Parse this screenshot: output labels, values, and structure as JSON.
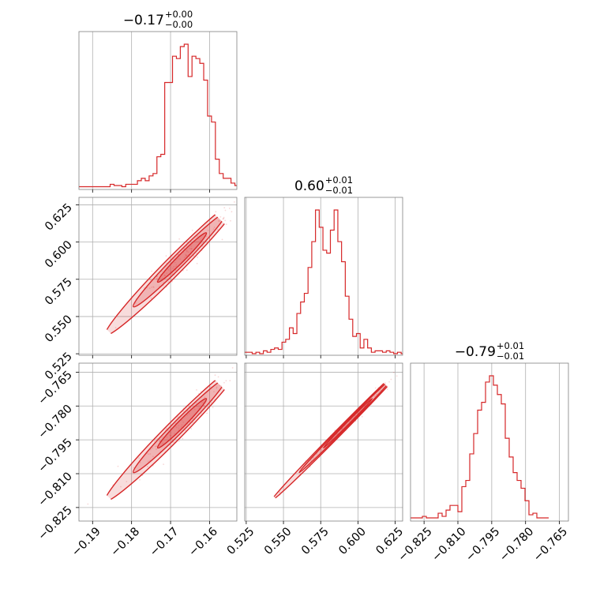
{
  "chart_data": {
    "type": "corner",
    "color": "#d62728",
    "grid": true,
    "parameters": [
      {
        "title": {
          "median": "−0.17",
          "plus": "+0.00",
          "minus": "−0.00"
        },
        "range": [
          -0.1935,
          -0.153
        ],
        "ticks": [
          -0.19,
          -0.18,
          -0.17,
          -0.16
        ],
        "tick_labels": [
          "−0.19",
          "−0.18",
          "−0.17",
          "−0.16"
        ],
        "histogram": {
          "start": -0.1935,
          "step": 0.001,
          "counts": [
            1,
            1,
            1,
            1,
            1,
            1,
            1,
            1,
            3,
            2,
            2,
            1,
            3,
            3,
            3,
            6,
            8,
            6,
            10,
            12,
            26,
            28,
            88,
            88,
            110,
            108,
            118,
            120,
            93,
            110,
            108,
            104,
            90,
            60,
            55,
            24,
            12,
            8,
            8,
            4,
            2
          ]
        }
      },
      {
        "title": {
          "median": "0.60",
          "plus": "+0.01",
          "minus": "−0.01"
        },
        "range": [
          0.524,
          0.63
        ],
        "ticks": [
          0.525,
          0.55,
          0.575,
          0.6,
          0.625
        ],
        "tick_labels": [
          "0.525",
          "0.550",
          "0.575",
          "0.600",
          "0.625"
        ],
        "left_tick_labels": [
          "0.525",
          "0.550",
          "0.575",
          "0.600",
          "0.625"
        ],
        "histogram": {
          "start": 0.524,
          "step": 0.0025,
          "counts": [
            1,
            1,
            0,
            1,
            0,
            2,
            1,
            3,
            4,
            3,
            8,
            10,
            18,
            14,
            28,
            36,
            42,
            60,
            78,
            100,
            88,
            72,
            70,
            86,
            100,
            78,
            64,
            40,
            24,
            12,
            14,
            4,
            10,
            4,
            1,
            2,
            2,
            1,
            2,
            1,
            0,
            1,
            0
          ]
        }
      },
      {
        "title": {
          "median": "−0.79",
          "plus": "+0.01",
          "minus": "−0.01"
        },
        "range": [
          -0.831,
          -0.761
        ],
        "ticks": [
          -0.825,
          -0.81,
          -0.795,
          -0.78,
          -0.765
        ],
        "tick_labels": [
          "−0.825",
          "−0.810",
          "−0.795",
          "−0.780",
          "−0.765"
        ],
        "left_tick_labels": [
          "−0.825",
          "−0.810",
          "−0.795",
          "−0.780",
          "−0.765"
        ],
        "histogram": {
          "start": -0.831,
          "step": 0.00175,
          "counts": [
            1,
            1,
            1,
            2,
            1,
            1,
            1,
            4,
            2,
            6,
            9,
            9,
            5,
            21,
            25,
            42,
            55,
            70,
            75,
            88,
            92,
            86,
            80,
            74,
            52,
            40,
            30,
            25,
            20,
            12,
            3,
            4,
            1,
            1,
            1
          ]
        }
      }
    ],
    "pairs": [
      {
        "row": 1,
        "col": 0,
        "correlation": "strong positive"
      },
      {
        "row": 2,
        "col": 0,
        "correlation": "strong positive"
      },
      {
        "row": 2,
        "col": 1,
        "correlation": "near-linear positive"
      }
    ]
  }
}
